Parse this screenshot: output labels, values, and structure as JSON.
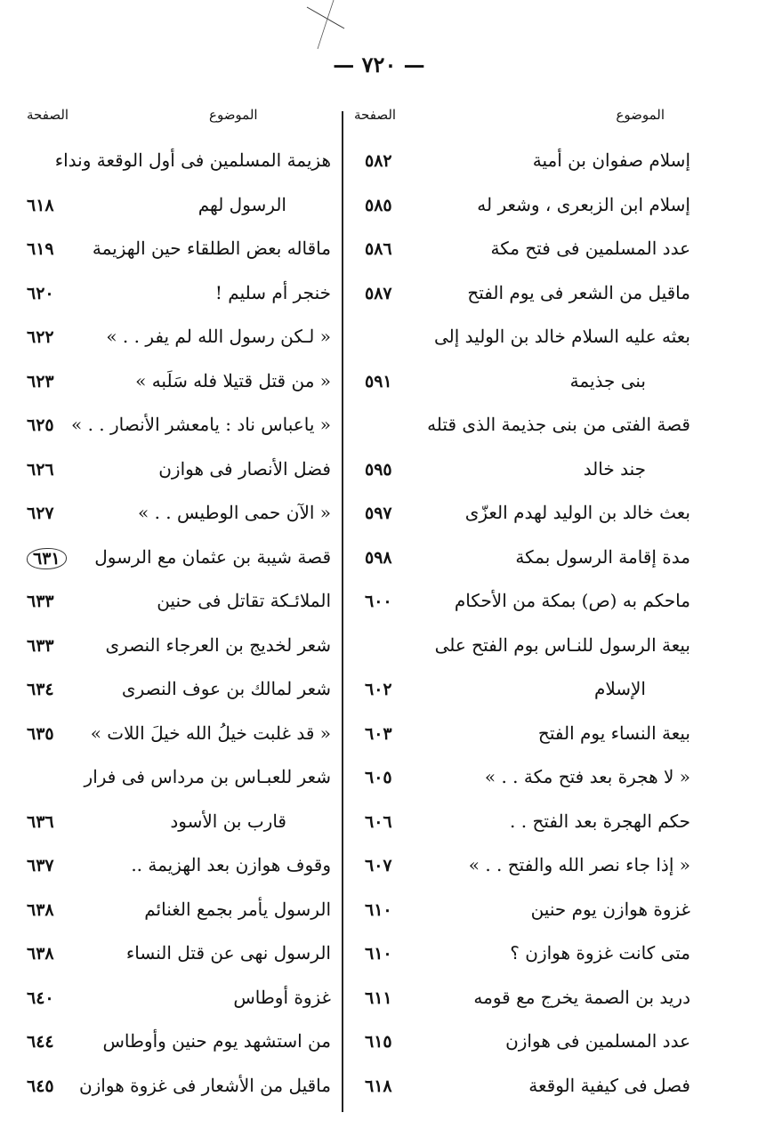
{
  "page_number": "— ٧٢٠ —",
  "headers": {
    "topic": "الموضوع",
    "page": "الصفحة"
  },
  "right_column": [
    {
      "topic": "إسلام صفوان بن أمية",
      "page": "٥٨٢"
    },
    {
      "topic": "إسلام ابن الزبعرى ، وشعر له",
      "page": "٥٨٥"
    },
    {
      "topic": "عدد المسلمين فى فتح مكة",
      "page": "٥٨٦"
    },
    {
      "topic": "ماقيل من الشعر فى يوم الفتح",
      "page": "٥٨٧"
    },
    {
      "topic": "بعثه عليه السلام خالد بن الوليد إلى",
      "page": ""
    },
    {
      "topic": "بنى جذيمة",
      "page": "٥٩١",
      "continuation": true
    },
    {
      "topic": "قصة الفتى من بنى جذيمة الذى قتله",
      "page": ""
    },
    {
      "topic": "جند خالد",
      "page": "٥٩٥",
      "continuation": true
    },
    {
      "topic": "بعث خالد بن الوليد لهدم العزّى",
      "page": "٥٩٧"
    },
    {
      "topic": "مدة إقامة الرسول بمكة",
      "page": "٥٩٨"
    },
    {
      "topic": "ماحكم به (ص) بمكة من الأحكام",
      "page": "٦٠٠"
    },
    {
      "topic": "بيعة الرسول للنـاس بوم الفتح على",
      "page": ""
    },
    {
      "topic": "الإسلام",
      "page": "٦٠٢",
      "continuation": true
    },
    {
      "topic": "بيعة النساء يوم الفتح",
      "page": "٦٠٣"
    },
    {
      "topic": "« لا هجرة بعد فتح مكة . . »",
      "page": "٦٠٥"
    },
    {
      "topic": "حكم الهجرة بعد الفتح . .",
      "page": "٦٠٦"
    },
    {
      "topic": "« إذا جاء نصر الله والفتح . . »",
      "page": "٦٠٧"
    },
    {
      "topic": "غزوة هوازن يوم حنين",
      "page": "٦١٠"
    },
    {
      "topic": "متى كانت غزوة هوازن ؟",
      "page": "٦١٠"
    },
    {
      "topic": "دريد بن الصمة يخرج مع قومه",
      "page": "٦١١"
    },
    {
      "topic": "عدد المسلمين فى هوازن",
      "page": "٦١٥"
    },
    {
      "topic": "فصل فى كيفية الوقعة",
      "page": "٦١٨"
    }
  ],
  "left_column": [
    {
      "topic": "هزيمة المسلمين فى أول الوقعة ونداء",
      "page": ""
    },
    {
      "topic": "الرسول لهم",
      "page": "٦١٨",
      "continuation": true
    },
    {
      "topic": "ماقاله بعض الطلقاء حين الهزيمة",
      "page": "٦١٩"
    },
    {
      "topic": "خنجر أم سليم !",
      "page": "٦٢٠"
    },
    {
      "topic": "« لـكن رسول الله لم يفر . . »",
      "page": "٦٢٢"
    },
    {
      "topic": "« من قتل قتيلا فله سَلَبه »",
      "page": "٦٢٣"
    },
    {
      "topic": "« ياعباس ناد : يامعشر الأنصار . . »",
      "page": "٦٢٥"
    },
    {
      "topic": "فضل الأنصار فى هوازن",
      "page": "٦٢٦"
    },
    {
      "topic": "« الآن حمى الوطيس . . »",
      "page": "٦٢٧"
    },
    {
      "topic": "قصة شيبة بن عثمان مع الرسول",
      "page": "٦٣١",
      "circled": true
    },
    {
      "topic": "الملائـكة تقاتل فى حنين",
      "page": "٦٣٣"
    },
    {
      "topic": "شعر لخديج بن العرجاء النصرى",
      "page": "٦٣٣"
    },
    {
      "topic": "شعر لمالك بن عوف النصرى",
      "page": "٦٣٤"
    },
    {
      "topic": "« قد غلبت خيلُ الله خيلَ اللات »",
      "page": "٦٣٥"
    },
    {
      "topic": "شعر للعبـاس بن مرداس فى فرار",
      "page": ""
    },
    {
      "topic": "قارب بن الأسود",
      "page": "٦٣٦",
      "continuation": true
    },
    {
      "topic": "وقوف هوازن بعد الهزيمة ..",
      "page": "٦٣٧"
    },
    {
      "topic": "الرسول يأمر بجمع الغنائم",
      "page": "٦٣٨"
    },
    {
      "topic": "الرسول نهى عن قتل النساء",
      "page": "٦٣٨"
    },
    {
      "topic": "غزوة أوطاس",
      "page": "٦٤٠"
    },
    {
      "topic": "من استشهد يوم حنين وأوطاس",
      "page": "٦٤٤"
    },
    {
      "topic": "ماقيل من الأشعار فى غزوة هوازن",
      "page": "٦٤٥"
    }
  ]
}
